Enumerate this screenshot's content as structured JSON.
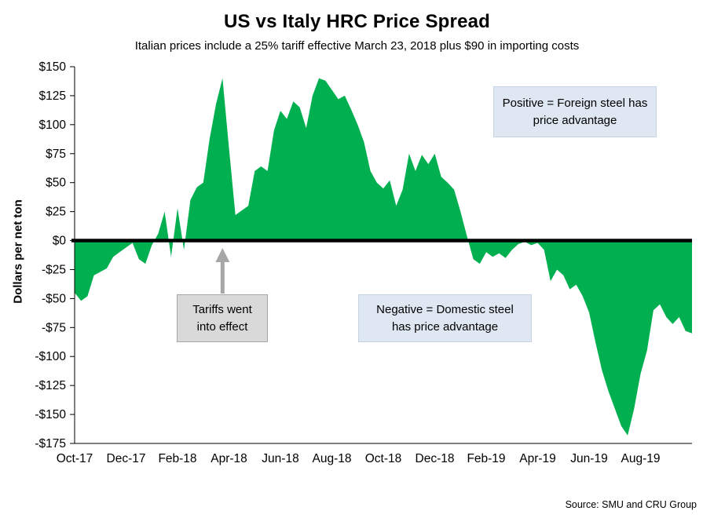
{
  "header": {
    "title": "US vs Italy HRC Price Spread",
    "subtitle": "Italian prices include a 25% tariff effective March 23, 2018 plus $90 in importing costs"
  },
  "annotations": {
    "positive": "Positive = Foreign steel has price advantage",
    "negative": "Negative = Domestic steel has price advantage",
    "tariffs": "Tariffs went into effect"
  },
  "source": "Source: SMU and CRU Group",
  "chart_data": {
    "type": "area",
    "title": "US vs Italy HRC Price Spread",
    "subtitle": "Italian prices include a 25% tariff effective March 23, 2018 plus $90 in importing costs",
    "xlabel": "",
    "ylabel": "Dollars per net ton",
    "ylim": [
      -175,
      150
    ],
    "ytick_step": 25,
    "ytick_labels": [
      "$150",
      "$125",
      "$100",
      "$75",
      "$50",
      "$25",
      "$0",
      "-$25",
      "-$50",
      "-$75",
      "-$100",
      "-$125",
      "-$150",
      "-$175"
    ],
    "x_total_months": 24,
    "x_ticks": [
      {
        "month": 0,
        "label": "Oct-17"
      },
      {
        "month": 2,
        "label": "Dec-17"
      },
      {
        "month": 4,
        "label": "Feb-18"
      },
      {
        "month": 6,
        "label": "Apr-18"
      },
      {
        "month": 8,
        "label": "Jun-18"
      },
      {
        "month": 10,
        "label": "Aug-18"
      },
      {
        "month": 12,
        "label": "Oct-18"
      },
      {
        "month": 14,
        "label": "Dec-18"
      },
      {
        "month": 16,
        "label": "Feb-19"
      },
      {
        "month": 18,
        "label": "Apr-19"
      },
      {
        "month": 20,
        "label": "Jun-19"
      },
      {
        "month": 22,
        "label": "Aug-19"
      }
    ],
    "grid": false,
    "legend": "none",
    "baseline": 0,
    "tariff_arrow_month": 5.75,
    "series": [
      {
        "name": "US vs Italy HRC price spread (weekly, $/net ton)",
        "values": [
          -45,
          -52,
          -48,
          -30,
          -27,
          -24,
          -14,
          -10,
          -6,
          -2,
          -16,
          -20,
          -4,
          6,
          25,
          -14,
          28,
          -8,
          35,
          46,
          50,
          88,
          118,
          140,
          80,
          22,
          26,
          30,
          60,
          64,
          60,
          95,
          112,
          105,
          120,
          115,
          97,
          125,
          140,
          138,
          130,
          122,
          125,
          113,
          100,
          85,
          60,
          50,
          45,
          52,
          30,
          44,
          75,
          60,
          74,
          66,
          75,
          55,
          50,
          44,
          25,
          4,
          -16,
          -20,
          -10,
          -14,
          -11,
          -15,
          -8,
          -3,
          -1,
          -4,
          -2,
          -8,
          -35,
          -25,
          -30,
          -42,
          -38,
          -48,
          -62,
          -88,
          -112,
          -130,
          -145,
          -160,
          -168,
          -145,
          -115,
          -95,
          -60,
          -55,
          -66,
          -72,
          -66,
          -78,
          -80
        ]
      }
    ],
    "colors": {
      "area": "#00B050",
      "zero_line": "#000000",
      "arrow": "#a6a6a6",
      "positive_box_bg": "#dee7f2",
      "tariff_box_bg": "#d9d9d9"
    }
  }
}
